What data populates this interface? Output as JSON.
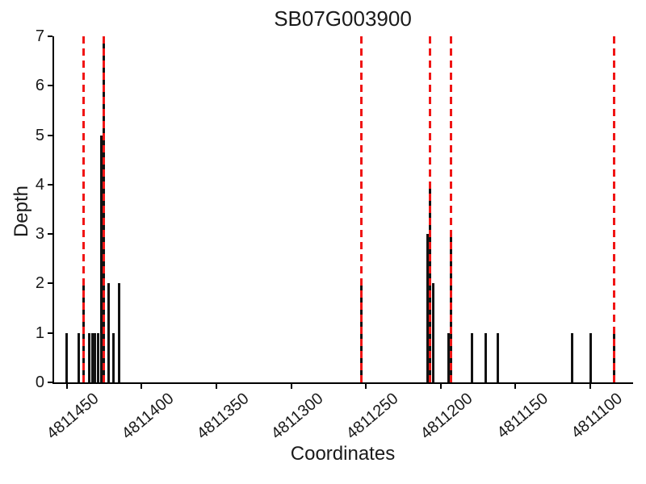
{
  "title": "SB07G003900",
  "chart_data": {
    "type": "bar",
    "title": "SB07G003900",
    "xlabel": "Coordinates",
    "ylabel": "Depth",
    "x_axis_reversed": true,
    "xlim": [
      4811459,
      4811072
    ],
    "ylim": [
      0,
      7
    ],
    "x_ticks": [
      4811450,
      4811400,
      4811350,
      4811300,
      4811250,
      4811200,
      4811150,
      4811100
    ],
    "y_ticks": [
      0,
      1,
      2,
      3,
      4,
      5,
      6,
      7
    ],
    "grid": false,
    "legend": false,
    "bars": [
      {
        "coord": 4811450,
        "depth": 1
      },
      {
        "coord": 4811442,
        "depth": 1
      },
      {
        "coord": 4811439,
        "depth": 2
      },
      {
        "coord": 4811435,
        "depth": 1
      },
      {
        "coord": 4811433,
        "depth": 1
      },
      {
        "coord": 4811431,
        "depth": 1
      },
      {
        "coord": 4811429,
        "depth": 1
      },
      {
        "coord": 4811427,
        "depth": 5
      },
      {
        "coord": 4811425,
        "depth": 7
      },
      {
        "coord": 4811422,
        "depth": 2
      },
      {
        "coord": 4811419,
        "depth": 1
      },
      {
        "coord": 4811415,
        "depth": 2
      },
      {
        "coord": 4811253,
        "depth": 2
      },
      {
        "coord": 4811209,
        "depth": 3
      },
      {
        "coord": 4811207,
        "depth": 4
      },
      {
        "coord": 4811205,
        "depth": 2
      },
      {
        "coord": 4811195,
        "depth": 1
      },
      {
        "coord": 4811193,
        "depth": 3
      },
      {
        "coord": 4811179,
        "depth": 1
      },
      {
        "coord": 4811170,
        "depth": 1
      },
      {
        "coord": 4811162,
        "depth": 1
      },
      {
        "coord": 4811112,
        "depth": 1
      },
      {
        "coord": 4811100,
        "depth": 1
      },
      {
        "coord": 4811084,
        "depth": 1
      }
    ],
    "red_dashed_lines": [
      4811439,
      4811425,
      4811253,
      4811207,
      4811193,
      4811084
    ],
    "colors": {
      "bar": "#121212",
      "dashed_line": "#f01515",
      "background": "#ffffff",
      "text": "#000000"
    }
  }
}
